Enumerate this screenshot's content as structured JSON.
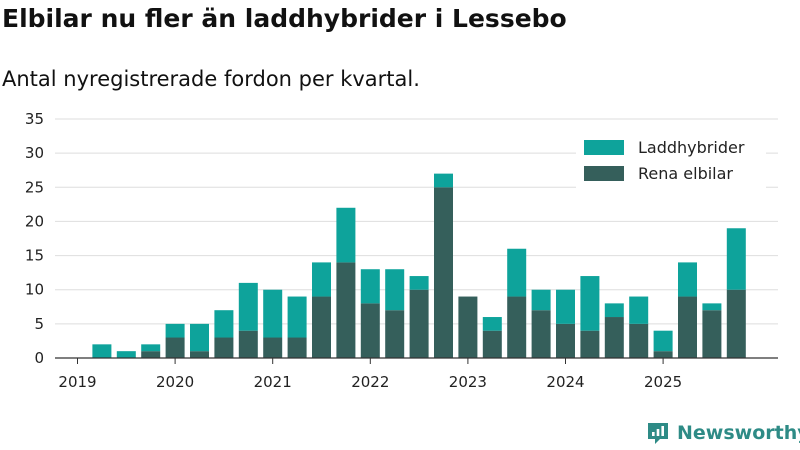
{
  "chart_data": {
    "type": "bar",
    "stacked": true,
    "title": "Elbilar nu fler än laddhybrider i Lessebo",
    "subtitle": "Antal nyregistrerade fordon per kvartal.",
    "xlabel": "",
    "ylabel": "",
    "ylim": [
      0,
      35
    ],
    "yticks": [
      0,
      5,
      10,
      15,
      20,
      25,
      30,
      35
    ],
    "grid": true,
    "legend_position": "top-right",
    "year_labels": [
      "2019",
      "2020",
      "2021",
      "2022",
      "2023",
      "2024",
      "2025"
    ],
    "categories": [
      "2019 Q1",
      "2019 Q2",
      "2019 Q3",
      "2019 Q4",
      "2020 Q1",
      "2020 Q2",
      "2020 Q3",
      "2020 Q4",
      "2021 Q1",
      "2021 Q2",
      "2021 Q3",
      "2021 Q4",
      "2022 Q1",
      "2022 Q2",
      "2022 Q3",
      "2022 Q4",
      "2023 Q1",
      "2023 Q2",
      "2023 Q3",
      "2023 Q4",
      "2024 Q1",
      "2024 Q2",
      "2024 Q3",
      "2024 Q4",
      "2025 Q1",
      "2025 Q2",
      "2025 Q3",
      "2025 Q4"
    ],
    "series": [
      {
        "name": "Rena elbilar",
        "color": "#355f5b",
        "values": [
          0,
          0,
          0,
          1,
          3,
          1,
          3,
          4,
          3,
          3,
          9,
          14,
          8,
          7,
          10,
          25,
          9,
          4,
          9,
          7,
          5,
          4,
          6,
          5,
          1,
          9,
          7,
          10
        ]
      },
      {
        "name": "Laddhybrider",
        "color": "#0ea39b",
        "values": [
          0,
          2,
          1,
          1,
          2,
          4,
          4,
          7,
          7,
          6,
          5,
          8,
          5,
          6,
          2,
          2,
          0,
          2,
          7,
          3,
          5,
          8,
          2,
          4,
          3,
          5,
          1,
          9
        ]
      }
    ],
    "legend_order": [
      "Laddhybrider",
      "Rena elbilar"
    ]
  },
  "branding": {
    "name": "Newsworthy",
    "icon": "newsworthy-logo-icon",
    "color": "#2e8b86"
  }
}
